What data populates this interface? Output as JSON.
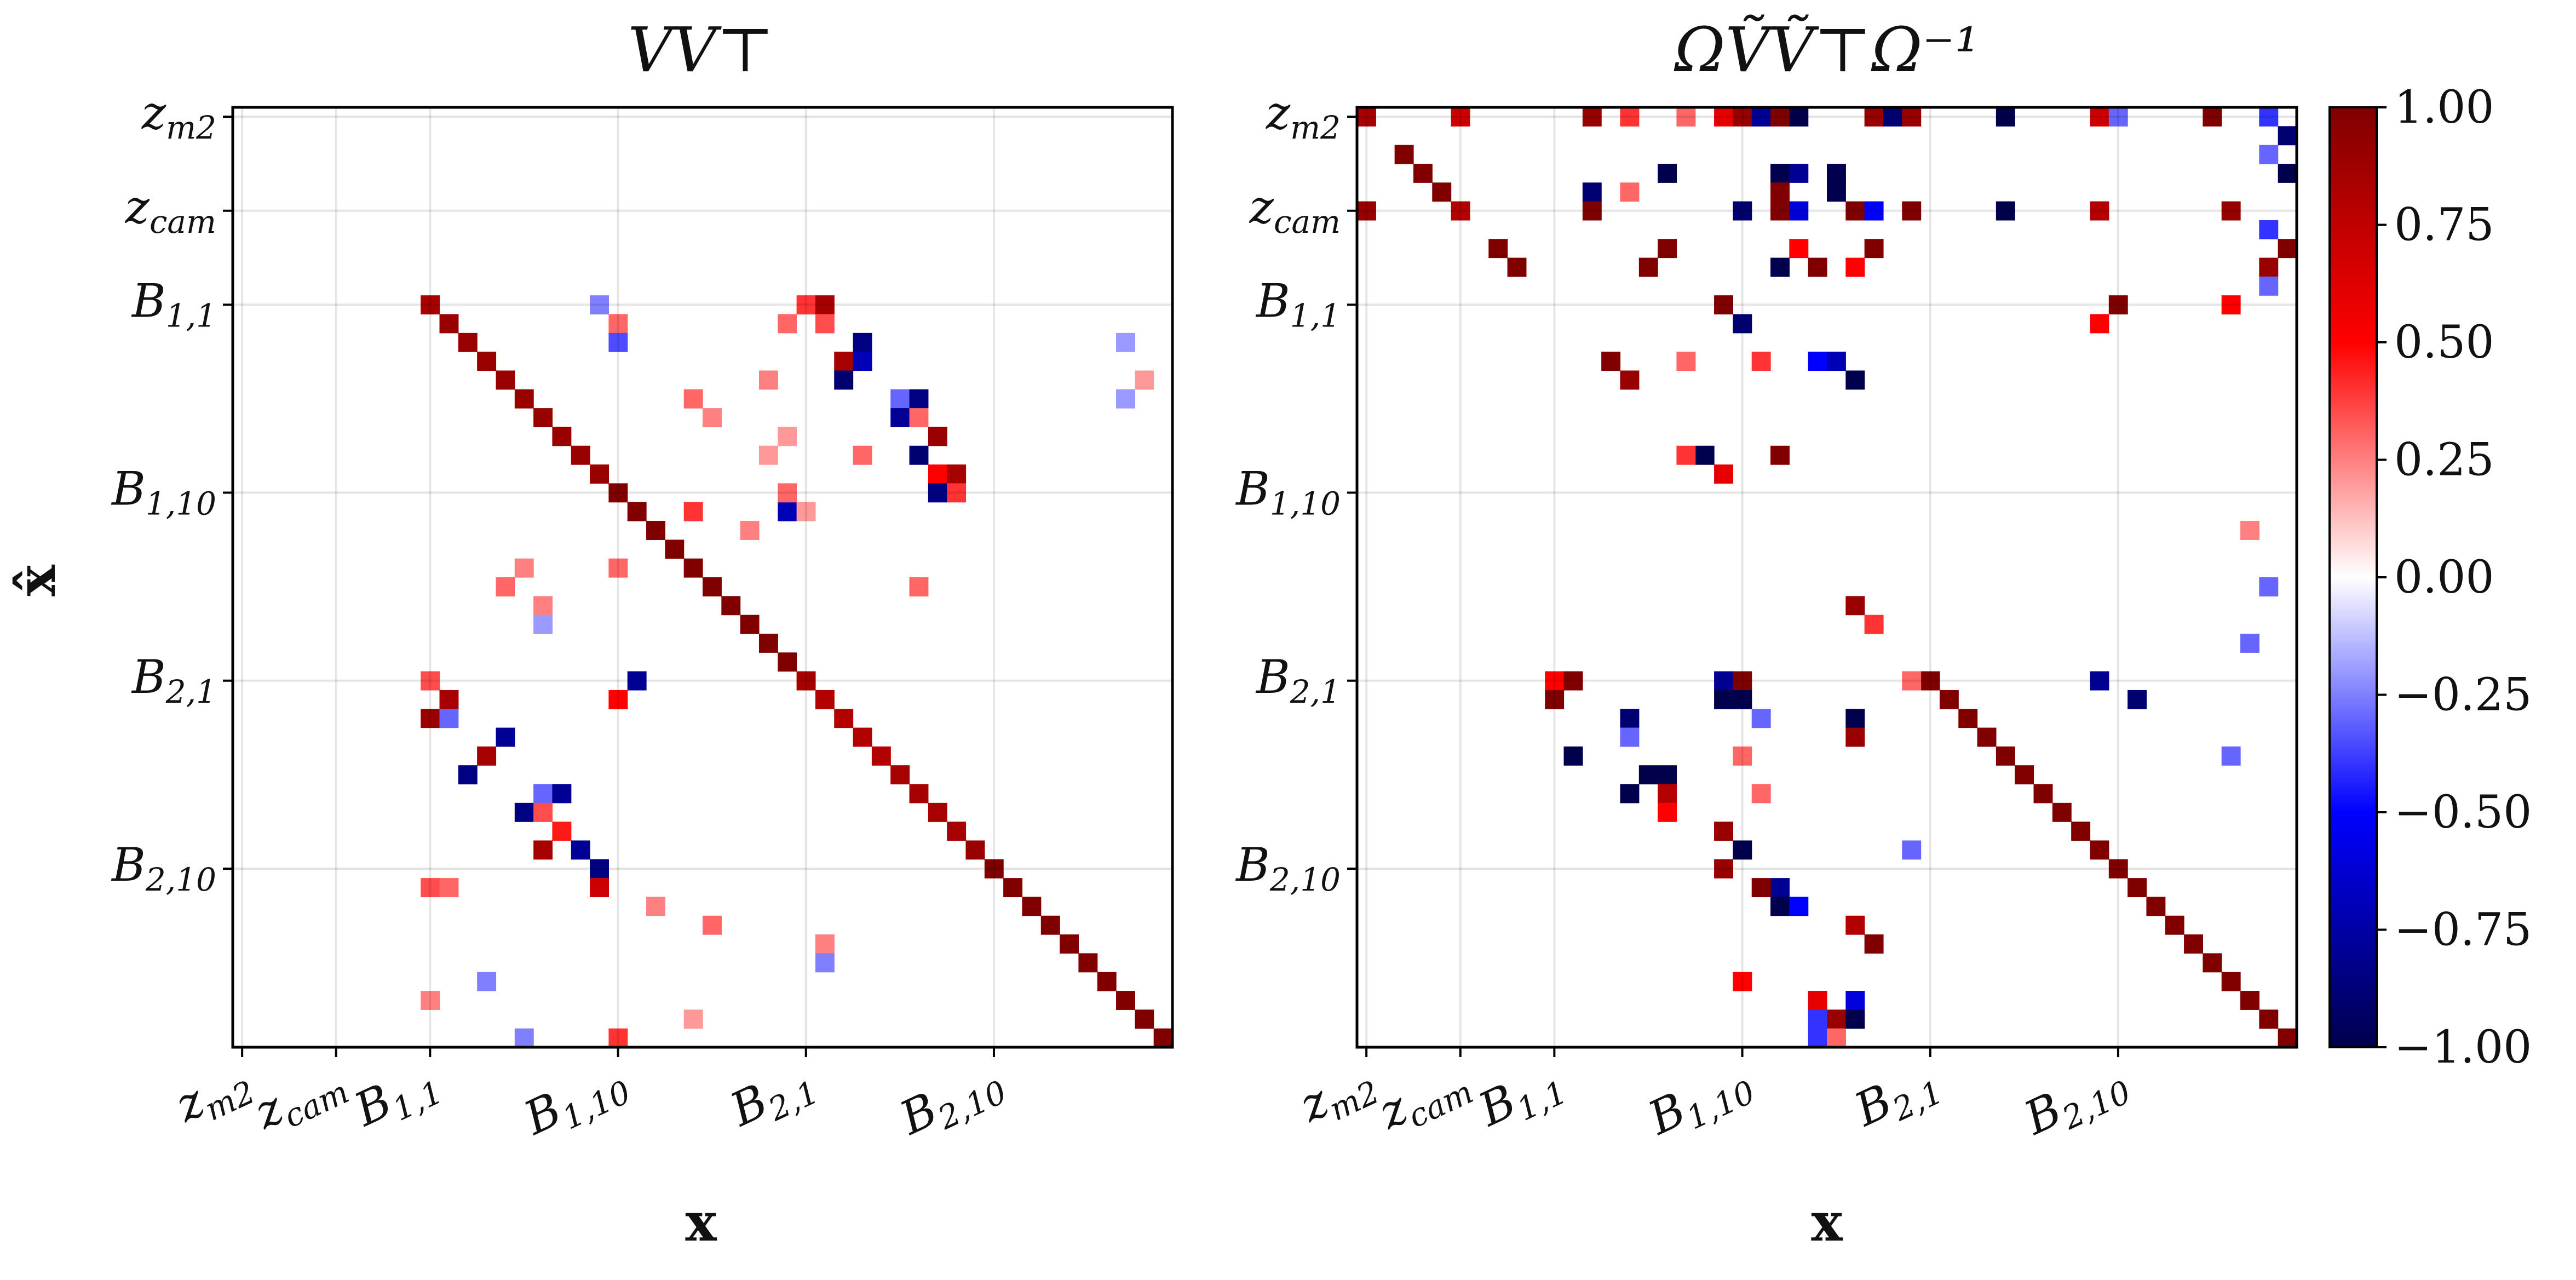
{
  "chart_data": [
    {
      "type": "heatmap",
      "title": "VV⊤",
      "xlabel": "x",
      "ylabel": "x̂",
      "x_tick_labels": [
        "zm2",
        "zcam",
        "B1,1",
        "B1,10",
        "B2,1",
        "B2,10"
      ],
      "y_tick_labels": [
        "zm2",
        "zcam",
        "B1,1",
        "B1,10",
        "B2,1",
        "B2,10"
      ],
      "grid_size": 50,
      "tick_index": [
        0,
        5,
        10,
        20,
        30,
        40
      ],
      "diagonal": "strong positive; ~0.9 for rows 10-19, ~1.0 for rows 20-29, ~0.85 for rows 30-39, ~1.0 for rows 40-49",
      "cells": [
        [
          10,
          10,
          0.85
        ],
        [
          11,
          11,
          0.9
        ],
        [
          12,
          12,
          0.9
        ],
        [
          13,
          13,
          0.9
        ],
        [
          14,
          14,
          0.9
        ],
        [
          15,
          15,
          0.9
        ],
        [
          16,
          16,
          0.9
        ],
        [
          17,
          17,
          0.9
        ],
        [
          18,
          18,
          0.9
        ],
        [
          19,
          19,
          0.9
        ],
        [
          20,
          20,
          1
        ],
        [
          21,
          21,
          1
        ],
        [
          22,
          22,
          1
        ],
        [
          23,
          23,
          1
        ],
        [
          24,
          24,
          1
        ],
        [
          25,
          25,
          1
        ],
        [
          26,
          26,
          1
        ],
        [
          27,
          27,
          1
        ],
        [
          28,
          28,
          1
        ],
        [
          29,
          29,
          1
        ],
        [
          30,
          30,
          0.85
        ],
        [
          31,
          31,
          0.8
        ],
        [
          32,
          32,
          0.8
        ],
        [
          33,
          33,
          0.8
        ],
        [
          34,
          34,
          0.8
        ],
        [
          35,
          35,
          0.85
        ],
        [
          36,
          36,
          0.85
        ],
        [
          37,
          37,
          0.85
        ],
        [
          38,
          38,
          0.85
        ],
        [
          39,
          39,
          0.9
        ],
        [
          40,
          40,
          1
        ],
        [
          41,
          41,
          1
        ],
        [
          42,
          42,
          1
        ],
        [
          43,
          43,
          1
        ],
        [
          44,
          44,
          1
        ],
        [
          45,
          45,
          1
        ],
        [
          46,
          46,
          1
        ],
        [
          47,
          47,
          1
        ],
        [
          48,
          48,
          1
        ],
        [
          49,
          49,
          1
        ],
        [
          10,
          30,
          0.4
        ],
        [
          10,
          31,
          0.85
        ],
        [
          11,
          31,
          0.35
        ],
        [
          11,
          29,
          0.3
        ],
        [
          12,
          33,
          -0.85
        ],
        [
          13,
          32,
          0.85
        ],
        [
          13,
          33,
          -0.7
        ],
        [
          14,
          32,
          -0.9
        ],
        [
          15,
          35,
          -0.3
        ],
        [
          15,
          36,
          -0.85
        ],
        [
          16,
          35,
          -0.8
        ],
        [
          16,
          36,
          0.3
        ],
        [
          17,
          37,
          0.9
        ],
        [
          18,
          36,
          -0.9
        ],
        [
          19,
          37,
          0.5
        ],
        [
          19,
          38,
          0.85
        ],
        [
          20,
          37,
          -0.85
        ],
        [
          20,
          38,
          0.4
        ],
        [
          21,
          29,
          -0.7
        ],
        [
          21,
          24,
          0.4
        ],
        [
          10,
          19,
          -0.25
        ],
        [
          11,
          20,
          0.3
        ],
        [
          12,
          20,
          -0.35
        ],
        [
          14,
          28,
          0.25
        ],
        [
          15,
          24,
          0.3
        ],
        [
          16,
          25,
          0.25
        ],
        [
          18,
          28,
          0.2
        ],
        [
          20,
          29,
          0.3
        ],
        [
          21,
          30,
          0.2
        ],
        [
          24,
          20,
          0.3
        ],
        [
          24,
          15,
          0.25
        ],
        [
          25,
          14,
          0.3
        ],
        [
          26,
          16,
          0.25
        ],
        [
          27,
          16,
          -0.2
        ],
        [
          30,
          10,
          0.35
        ],
        [
          30,
          21,
          -0.8
        ],
        [
          31,
          11,
          0.85
        ],
        [
          31,
          20,
          0.5
        ],
        [
          32,
          10,
          0.9
        ],
        [
          32,
          11,
          -0.3
        ],
        [
          33,
          14,
          -0.8
        ],
        [
          34,
          13,
          0.85
        ],
        [
          35,
          12,
          -0.85
        ],
        [
          36,
          16,
          -0.3
        ],
        [
          36,
          17,
          -0.8
        ],
        [
          37,
          15,
          -0.85
        ],
        [
          37,
          16,
          0.35
        ],
        [
          38,
          17,
          0.45
        ],
        [
          39,
          18,
          -0.8
        ],
        [
          39,
          16,
          0.85
        ],
        [
          40,
          19,
          -0.85
        ],
        [
          41,
          19,
          0.7
        ],
        [
          41,
          10,
          0.35
        ],
        [
          41,
          11,
          0.3
        ],
        [
          42,
          22,
          0.25
        ],
        [
          43,
          25,
          0.3
        ],
        [
          44,
          31,
          0.25
        ],
        [
          45,
          31,
          -0.25
        ],
        [
          46,
          13,
          -0.25
        ],
        [
          47,
          10,
          0.25
        ],
        [
          48,
          24,
          0.2
        ],
        [
          49,
          15,
          -0.25
        ],
        [
          49,
          20,
          0.4
        ],
        [
          17,
          29,
          0.2
        ],
        [
          18,
          33,
          0.3
        ],
        [
          22,
          27,
          0.25
        ],
        [
          25,
          36,
          0.3
        ],
        [
          12,
          47,
          -0.2
        ],
        [
          15,
          47,
          -0.2
        ],
        [
          14,
          48,
          0.2
        ]
      ]
    },
    {
      "type": "heatmap",
      "title": "ΩṼṼ⊤Ω⁻¹",
      "xlabel": "x",
      "ylabel": "",
      "x_tick_labels": [
        "zm2",
        "zcam",
        "B1,1",
        "B1,10",
        "B2,1",
        "B2,10"
      ],
      "y_tick_labels": [
        "zm2",
        "zcam",
        "B1,1",
        "B1,10",
        "B2,1",
        "B2,10"
      ],
      "grid_size": 50,
      "tick_index": [
        0,
        5,
        10,
        20,
        30,
        40
      ],
      "diagonal": "strong positive ~1.0 for rows 30-49",
      "cells": [
        [
          30,
          30,
          1
        ],
        [
          31,
          31,
          1
        ],
        [
          32,
          32,
          1
        ],
        [
          33,
          33,
          1
        ],
        [
          34,
          34,
          1
        ],
        [
          35,
          35,
          1
        ],
        [
          36,
          36,
          1
        ],
        [
          37,
          37,
          1
        ],
        [
          38,
          38,
          1
        ],
        [
          39,
          39,
          1
        ],
        [
          40,
          40,
          1
        ],
        [
          41,
          41,
          1
        ],
        [
          42,
          42,
          1
        ],
        [
          43,
          43,
          1
        ],
        [
          44,
          44,
          1
        ],
        [
          45,
          45,
          1
        ],
        [
          46,
          46,
          1
        ],
        [
          47,
          47,
          1
        ],
        [
          48,
          48,
          1
        ],
        [
          49,
          49,
          1
        ],
        [
          0,
          0,
          0.85
        ],
        [
          0,
          5,
          0.7
        ],
        [
          0,
          12,
          0.9
        ],
        [
          0,
          14,
          0.4
        ],
        [
          0,
          17,
          0.3
        ],
        [
          0,
          19,
          0.6
        ],
        [
          0,
          20,
          0.9
        ],
        [
          0,
          21,
          -0.8
        ],
        [
          0,
          22,
          1
        ],
        [
          0,
          23,
          -1
        ],
        [
          0,
          27,
          0.9
        ],
        [
          0,
          28,
          -0.9
        ],
        [
          0,
          29,
          0.9
        ],
        [
          0,
          34,
          -1
        ],
        [
          0,
          39,
          0.7
        ],
        [
          0,
          40,
          -0.3
        ],
        [
          0,
          45,
          1
        ],
        [
          0,
          48,
          -0.4
        ],
        [
          2,
          2,
          1
        ],
        [
          2,
          48,
          -0.3
        ],
        [
          1,
          49,
          -0.9
        ],
        [
          3,
          3,
          1
        ],
        [
          3,
          16,
          -1
        ],
        [
          3,
          22,
          -1
        ],
        [
          3,
          23,
          -0.8
        ],
        [
          3,
          25,
          -1
        ],
        [
          3,
          49,
          -1
        ],
        [
          4,
          4,
          1
        ],
        [
          4,
          12,
          -0.9
        ],
        [
          4,
          14,
          0.3
        ],
        [
          4,
          22,
          1
        ],
        [
          4,
          25,
          -1
        ],
        [
          5,
          0,
          0.9
        ],
        [
          5,
          5,
          0.8
        ],
        [
          5,
          12,
          1
        ],
        [
          5,
          20,
          -0.9
        ],
        [
          5,
          22,
          1
        ],
        [
          5,
          23,
          -0.6
        ],
        [
          5,
          26,
          1
        ],
        [
          5,
          27,
          -0.5
        ],
        [
          5,
          29,
          1
        ],
        [
          5,
          34,
          -1
        ],
        [
          5,
          39,
          0.8
        ],
        [
          5,
          46,
          0.9
        ],
        [
          7,
          7,
          1
        ],
        [
          7,
          16,
          1
        ],
        [
          7,
          23,
          0.5
        ],
        [
          7,
          27,
          1
        ],
        [
          7,
          49,
          1
        ],
        [
          8,
          8,
          1
        ],
        [
          8,
          15,
          1
        ],
        [
          8,
          22,
          -1
        ],
        [
          8,
          24,
          1
        ],
        [
          8,
          26,
          0.5
        ],
        [
          8,
          48,
          0.9
        ],
        [
          10,
          19,
          1
        ],
        [
          10,
          40,
          1
        ],
        [
          10,
          46,
          0.5
        ],
        [
          11,
          20,
          -0.9
        ],
        [
          11,
          39,
          0.5
        ],
        [
          13,
          13,
          1
        ],
        [
          13,
          17,
          0.3
        ],
        [
          13,
          21,
          0.4
        ],
        [
          13,
          24,
          -0.5
        ],
        [
          13,
          25,
          -0.7
        ],
        [
          14,
          14,
          0.9
        ],
        [
          14,
          26,
          -1
        ],
        [
          18,
          18,
          -1
        ],
        [
          18,
          17,
          0.4
        ],
        [
          18,
          22,
          1
        ],
        [
          19,
          19,
          0.6
        ],
        [
          26,
          26,
          0.9
        ],
        [
          27,
          27,
          0.4
        ],
        [
          30,
          10,
          0.5
        ],
        [
          30,
          11,
          1
        ],
        [
          30,
          19,
          -0.8
        ],
        [
          30,
          20,
          1
        ],
        [
          30,
          29,
          0.3
        ],
        [
          30,
          39,
          -0.8
        ],
        [
          31,
          10,
          1
        ],
        [
          31,
          19,
          -1
        ],
        [
          31,
          20,
          -1
        ],
        [
          31,
          41,
          -0.9
        ],
        [
          32,
          14,
          -0.9
        ],
        [
          32,
          21,
          -0.3
        ],
        [
          32,
          26,
          -1
        ],
        [
          33,
          14,
          -0.3
        ],
        [
          33,
          26,
          0.9
        ],
        [
          34,
          11,
          -1
        ],
        [
          34,
          20,
          0.3
        ],
        [
          35,
          15,
          -1
        ],
        [
          35,
          16,
          -1
        ],
        [
          36,
          14,
          -1
        ],
        [
          36,
          16,
          0.8
        ],
        [
          36,
          21,
          0.3
        ],
        [
          37,
          16,
          0.5
        ],
        [
          38,
          19,
          0.9
        ],
        [
          39,
          20,
          -1
        ],
        [
          39,
          29,
          -0.3
        ],
        [
          40,
          19,
          0.9
        ],
        [
          41,
          22,
          -0.8
        ],
        [
          41,
          21,
          1
        ],
        [
          42,
          22,
          -1
        ],
        [
          42,
          23,
          -0.5
        ],
        [
          43,
          26,
          0.8
        ],
        [
          44,
          27,
          1
        ],
        [
          46,
          20,
          0.5
        ],
        [
          47,
          24,
          0.6
        ],
        [
          47,
          26,
          -0.6
        ],
        [
          48,
          25,
          0.9
        ],
        [
          48,
          24,
          -0.4
        ],
        [
          48,
          26,
          -1
        ],
        [
          49,
          24,
          -0.4
        ],
        [
          49,
          25,
          0.3
        ],
        [
          6,
          48,
          -0.4
        ],
        [
          9,
          48,
          -0.3
        ],
        [
          22,
          47,
          0.25
        ],
        [
          25,
          48,
          -0.3
        ],
        [
          28,
          47,
          -0.3
        ],
        [
          34,
          46,
          -0.3
        ]
      ]
    }
  ],
  "colorbar": {
    "ticks": [
      "1.00",
      "0.75",
      "0.50",
      "0.25",
      "0.00",
      "−0.25",
      "−0.50",
      "−0.75",
      "−1.00"
    ],
    "range": [
      -1,
      1
    ],
    "colormap": "seismic"
  }
}
